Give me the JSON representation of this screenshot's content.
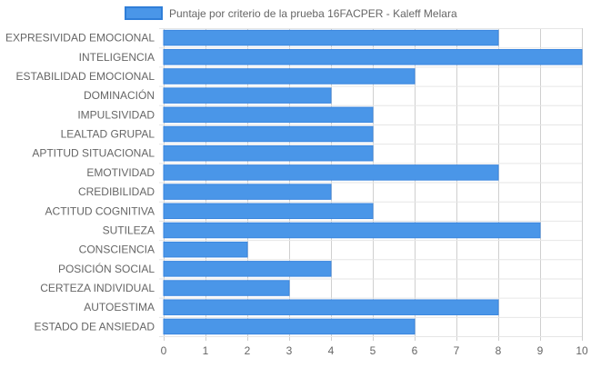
{
  "chart_data": {
    "type": "bar",
    "orientation": "horizontal",
    "legend": {
      "position": "top",
      "label": "Puntaje por criterio de la prueba 16FACPER - Kaleff Melara"
    },
    "categories": [
      "EXPRESIVIDAD EMOCIONAL",
      "INTELIGENCIA",
      "ESTABILIDAD EMOCIONAL",
      "DOMINACIÓN",
      "IMPULSIVIDAD",
      "LEALTAD GRUPAL",
      "APTITUD SITUACIONAL",
      "EMOTIVIDAD",
      "CREDIBILIDAD",
      "ACTITUD COGNITIVA",
      "SUTILEZA",
      "CONSCIENCIA",
      "POSICIÓN SOCIAL",
      "CERTEZA INDIVIDUAL",
      "AUTOESTIMA",
      "ESTADO DE ANSIEDAD"
    ],
    "series": [
      {
        "name": "Puntaje por criterio de la prueba 16FACPER - Kaleff Melara",
        "values": [
          8,
          10,
          6,
          4,
          5,
          5,
          5,
          8,
          4,
          5,
          9,
          2,
          4,
          3,
          8,
          6
        ]
      }
    ],
    "xlim": [
      0,
      10
    ],
    "xticks": [
      "0",
      "1",
      "2",
      "3",
      "4",
      "5",
      "6",
      "7",
      "8",
      "9",
      "10"
    ],
    "grid": true,
    "colors": {
      "bar_fill": "#4a96e8",
      "bar_border": "#3a86df",
      "grid": "#e6e6e6",
      "axis_text": "#666666"
    }
  }
}
